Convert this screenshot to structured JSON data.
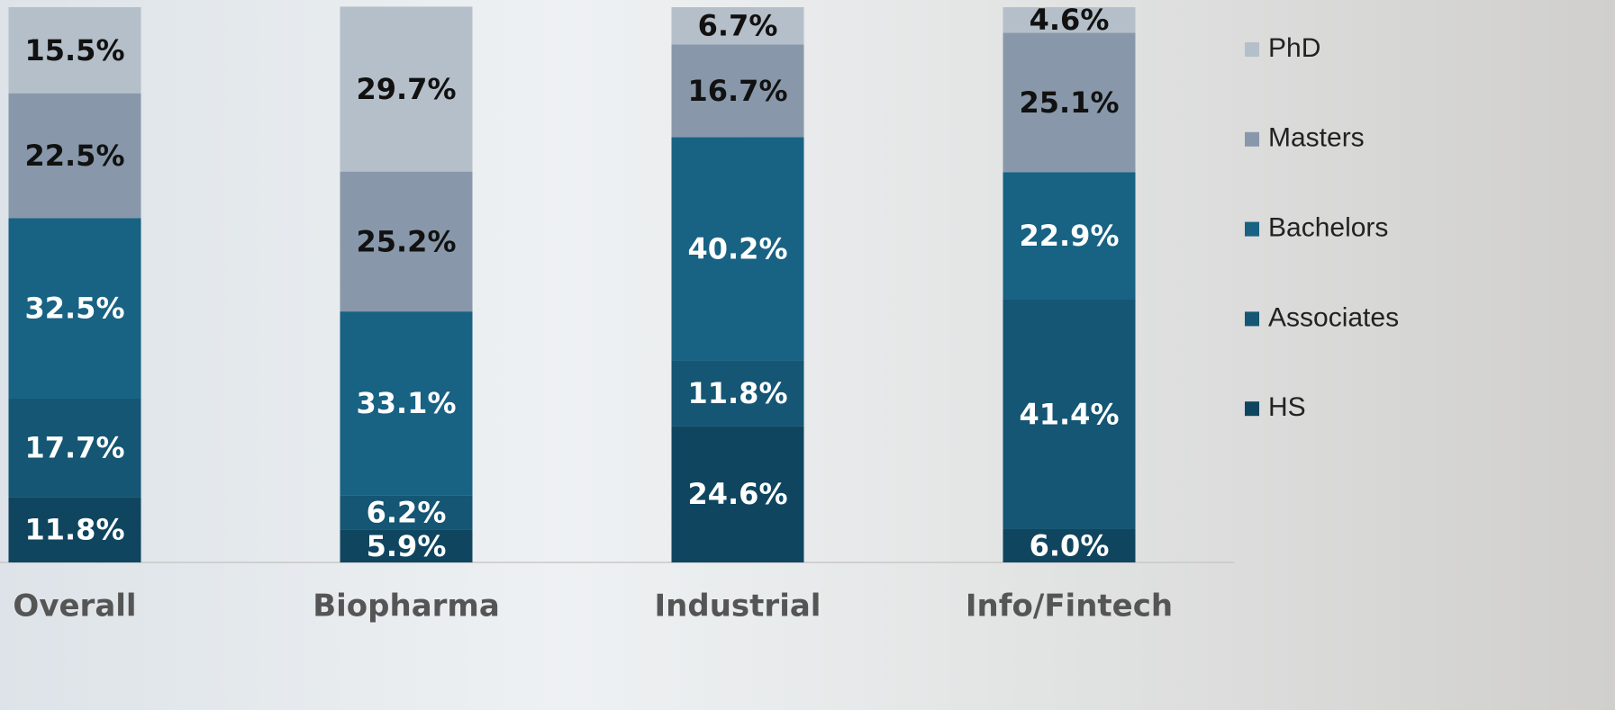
{
  "chart_data": {
    "type": "stacked_bar",
    "categories": [
      "Overall",
      "Biopharma",
      "Industrial",
      "Info/Fintech"
    ],
    "ylim": [
      0,
      100
    ],
    "legend": "right",
    "series": [
      {
        "name": "HS",
        "color": "#0f455f",
        "values": [
          11.8,
          5.9,
          24.6,
          6.0
        ],
        "value_labels": [
          "11.8%",
          "5.9%",
          "24.6%",
          "6.0%"
        ]
      },
      {
        "name": "Associates",
        "color": "#145673",
        "values": [
          17.7,
          6.2,
          11.8,
          41.4
        ],
        "value_labels": [
          "17.7%",
          "6.2%",
          "11.8%",
          "41.4%"
        ]
      },
      {
        "name": "Bachelors",
        "color": "#186283",
        "values": [
          32.5,
          33.1,
          40.2,
          22.9
        ],
        "value_labels": [
          "32.5%",
          "33.1%",
          "40.2%",
          "22.9%"
        ]
      },
      {
        "name": "Masters",
        "color": "#8898aa",
        "values": [
          22.5,
          25.2,
          16.7,
          25.1
        ],
        "value_labels": [
          "22.5%",
          "25.2%",
          "16.7%",
          "25.1%"
        ]
      },
      {
        "name": "PhD",
        "color": "#b5bfc9",
        "values": [
          15.5,
          29.7,
          6.7,
          4.6
        ],
        "value_labels": [
          "15.5%",
          "29.7%",
          "6.7%",
          "4.6%"
        ]
      }
    ]
  }
}
